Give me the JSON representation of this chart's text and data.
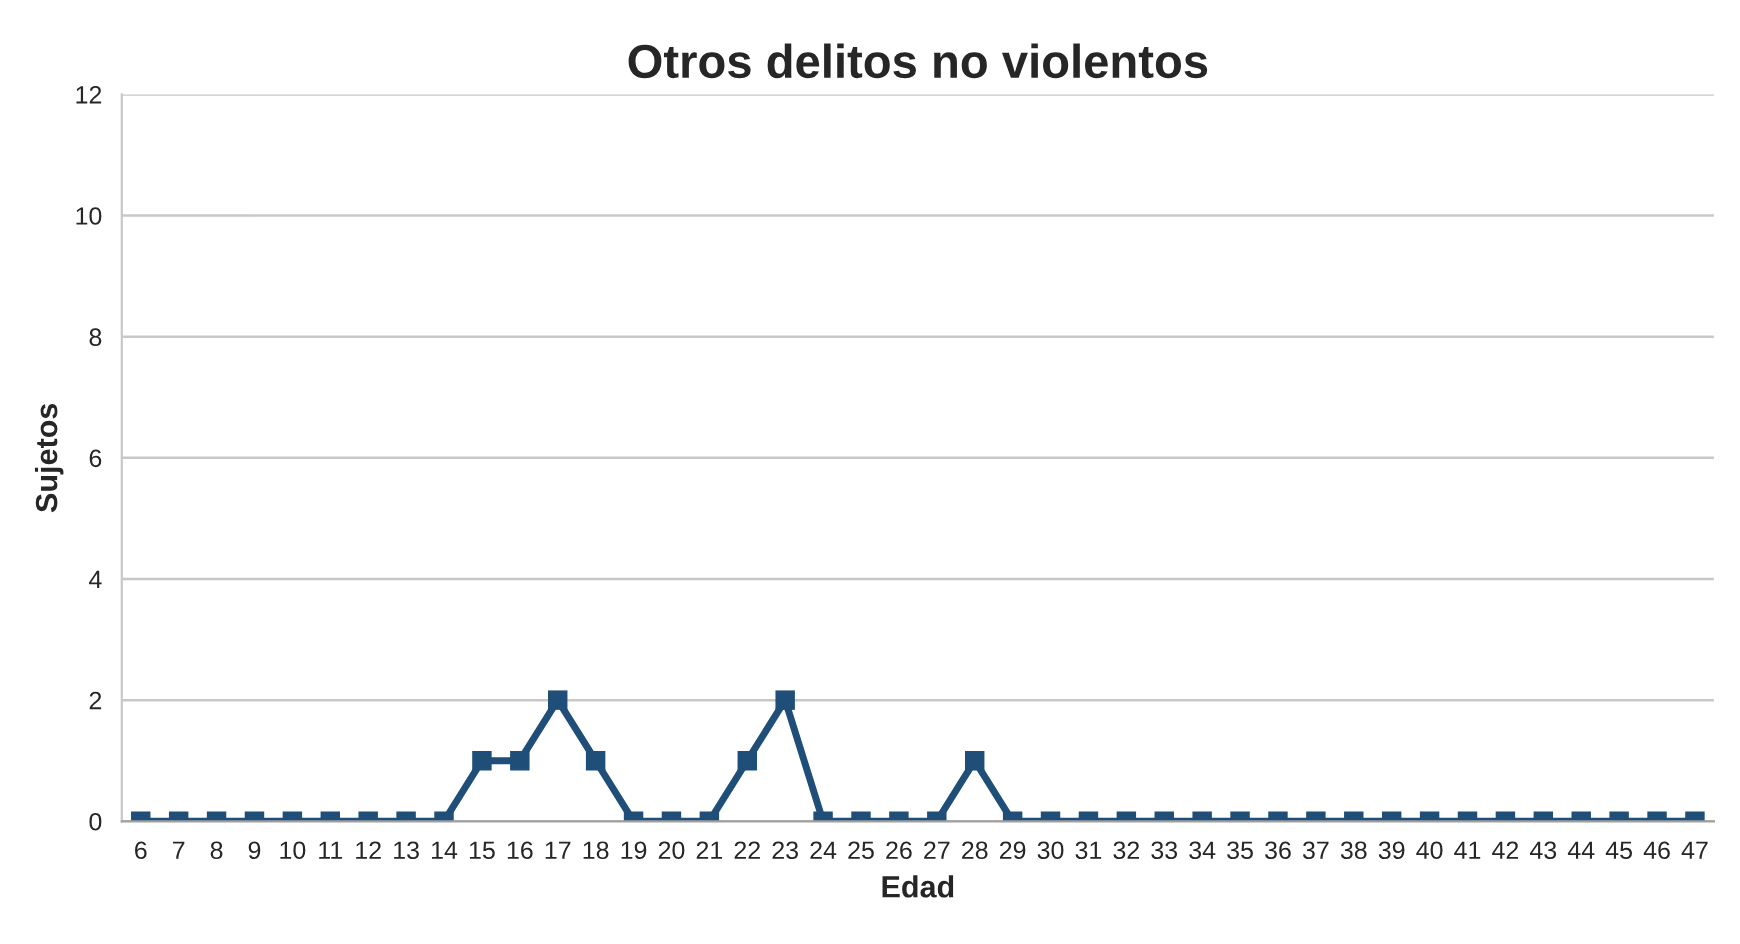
{
  "chart_data": {
    "type": "line",
    "title": "Otros delitos no violentos",
    "xlabel": "Edad",
    "ylabel": "Sujetos",
    "categories": [
      "6",
      "7",
      "8",
      "9",
      "10",
      "11",
      "12",
      "13",
      "14",
      "15",
      "16",
      "17",
      "18",
      "19",
      "20",
      "21",
      "22",
      "23",
      "24",
      "25",
      "26",
      "27",
      "28",
      "29",
      "30",
      "31",
      "32",
      "33",
      "34",
      "35",
      "36",
      "37",
      "38",
      "39",
      "40",
      "41",
      "42",
      "43",
      "44",
      "45",
      "46",
      "47"
    ],
    "series": [
      {
        "color": "#1f4e79",
        "values": [
          0,
          0,
          0,
          0,
          0,
          0,
          0,
          0,
          0,
          1,
          1,
          2,
          1,
          0,
          0,
          0,
          1,
          2,
          0,
          0,
          0,
          0,
          1,
          0,
          0,
          0,
          0,
          0,
          0,
          0,
          0,
          0,
          0,
          0,
          0,
          0,
          0,
          0,
          0,
          0,
          0,
          0
        ]
      }
    ],
    "ylim": [
      0,
      12
    ],
    "yticks": [
      0,
      2,
      4,
      6,
      8,
      10,
      12
    ],
    "grid": "y",
    "legend": false,
    "marker": "square",
    "line_style": "solid"
  }
}
